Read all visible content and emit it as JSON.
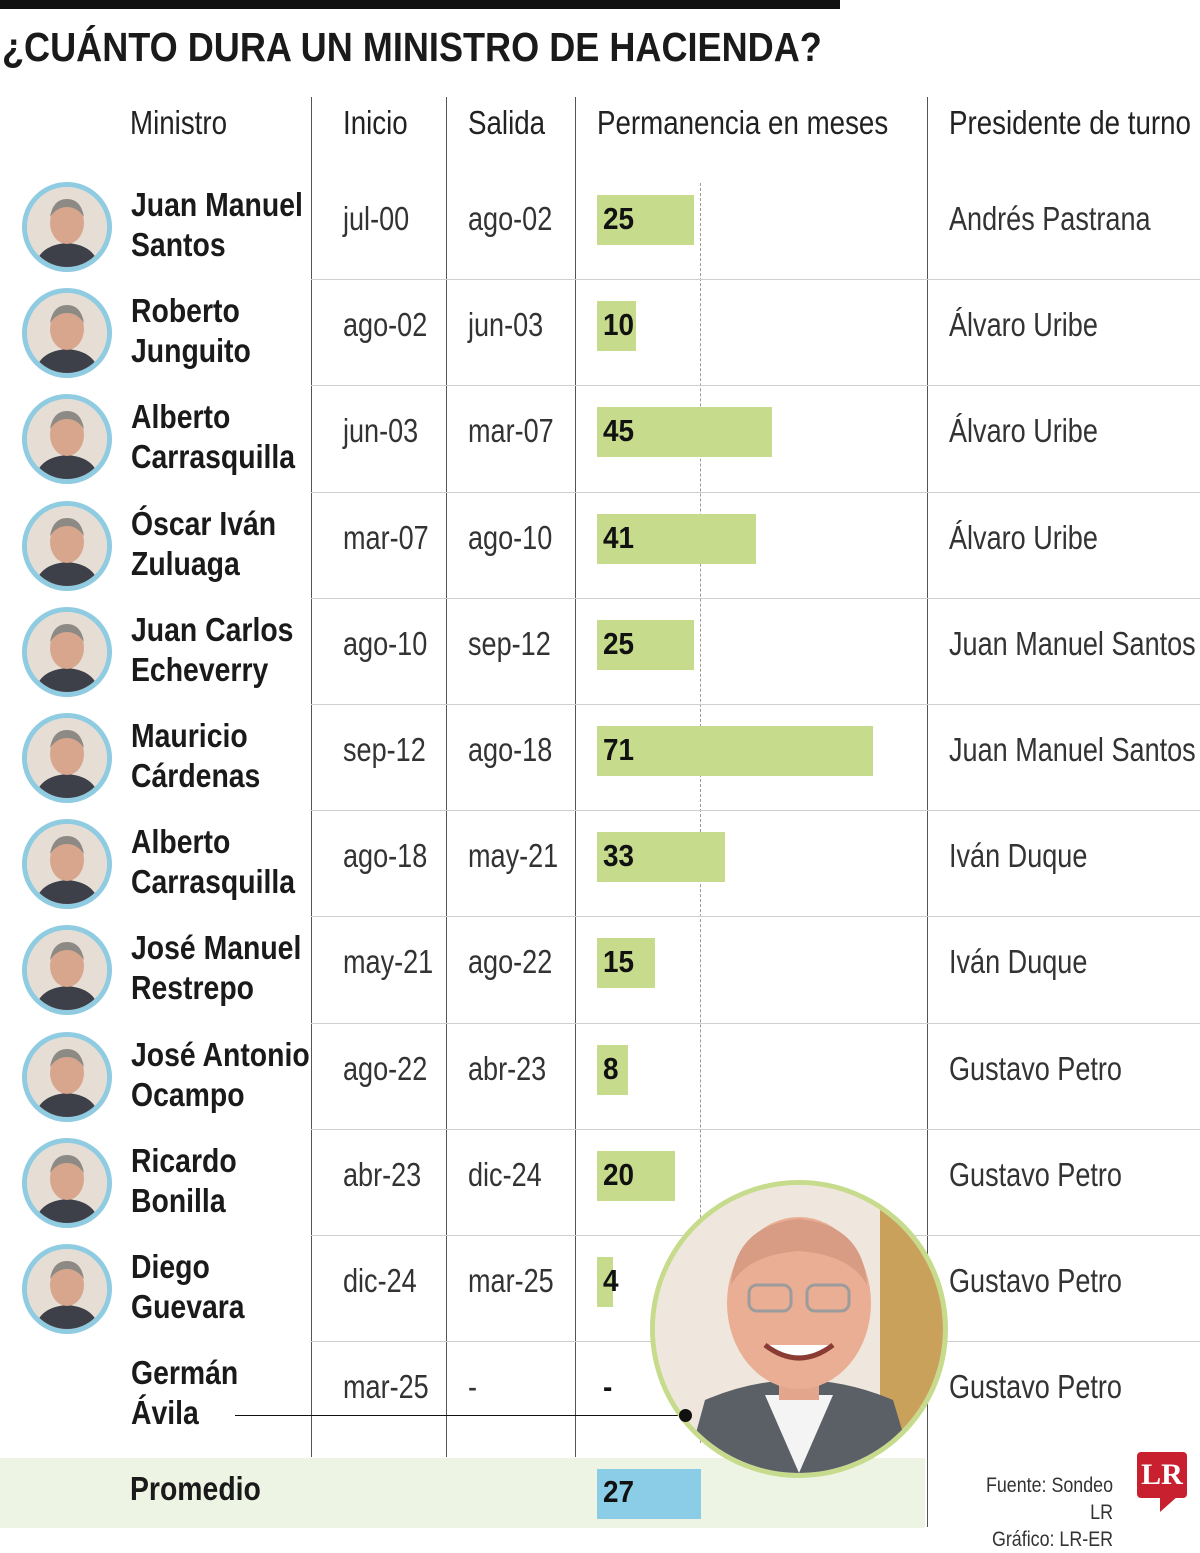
{
  "title": "¿CUÁNTO DURA UN MINISTRO DE HACIENDA?",
  "headers": {
    "ministro": "Ministro",
    "inicio": "Inicio",
    "salida": "Salida",
    "permanencia": "Permanencia en meses",
    "presidente": "Presidente de turno"
  },
  "rows": [
    {
      "name1": "Juan Manuel",
      "name2": "Santos",
      "inicio": "jul-00",
      "salida": "ago-02",
      "months": "25",
      "presidente": "Andrés Pastrana"
    },
    {
      "name1": "Roberto",
      "name2": "Junguito",
      "inicio": "ago-02",
      "salida": "jun-03",
      "months": "10",
      "presidente": "Álvaro Uribe"
    },
    {
      "name1": "Alberto",
      "name2": "Carrasquilla",
      "inicio": "jun-03",
      "salida": "mar-07",
      "months": "45",
      "presidente": "Álvaro Uribe"
    },
    {
      "name1": "Óscar Iván",
      "name2": "Zuluaga",
      "inicio": "mar-07",
      "salida": "ago-10",
      "months": "41",
      "presidente": "Álvaro Uribe"
    },
    {
      "name1": "Juan Carlos",
      "name2": "Echeverry",
      "inicio": "ago-10",
      "salida": "sep-12",
      "months": "25",
      "presidente": "Juan Manuel Santos"
    },
    {
      "name1": "Mauricio",
      "name2": "Cárdenas",
      "inicio": "sep-12",
      "salida": "ago-18",
      "months": "71",
      "presidente": "Juan Manuel Santos"
    },
    {
      "name1": "Alberto",
      "name2": "Carrasquilla",
      "inicio": "ago-18",
      "salida": "may-21",
      "months": "33",
      "presidente": "Iván Duque"
    },
    {
      "name1": "José Manuel",
      "name2": "Restrepo",
      "inicio": "may-21",
      "salida": "ago-22",
      "months": "15",
      "presidente": "Iván Duque"
    },
    {
      "name1": "José Antonio",
      "name2": "Ocampo",
      "inicio": "ago-22",
      "salida": "abr-23",
      "months": "8",
      "presidente": "Gustavo Petro"
    },
    {
      "name1": "Ricardo",
      "name2": "Bonilla",
      "inicio": "abr-23",
      "salida": "dic-24",
      "months": "20",
      "presidente": "Gustavo Petro"
    },
    {
      "name1": "Diego",
      "name2": "Guevara",
      "inicio": "dic-24",
      "salida": "mar-25",
      "months": "4",
      "presidente": "Gustavo Petro"
    },
    {
      "name1": "Germán",
      "name2": "Ávila",
      "inicio": "mar-25",
      "salida": "-",
      "months": "-",
      "presidente": "Gustavo Petro"
    }
  ],
  "average": {
    "label": "Promedio",
    "value": "27"
  },
  "source": {
    "line1": "Fuente: Sondeo LR",
    "line2": "Gráfico: LR-ER"
  },
  "logo": "LR",
  "colors": {
    "bar": "#c6dc8c",
    "average_bar": "#8bcde6",
    "avatar_ring": "#8fcbe1",
    "logo": "#c8202f"
  },
  "chart_data": {
    "type": "bar",
    "title": "¿CUÁNTO DURA UN MINISTRO DE HACIENDA?",
    "ylabel": "Permanencia en meses",
    "categories": [
      "Juan Manuel Santos",
      "Roberto Junguito",
      "Alberto Carrasquilla",
      "Óscar Iván Zuluaga",
      "Juan Carlos Echeverry",
      "Mauricio Cárdenas",
      "Alberto Carrasquilla",
      "José Manuel Restrepo",
      "José Antonio Ocampo",
      "Ricardo Bonilla",
      "Diego Guevara",
      "Germán Ávila"
    ],
    "values": [
      25,
      10,
      45,
      41,
      25,
      71,
      33,
      15,
      8,
      20,
      4,
      null
    ],
    "average": 27,
    "xlim": [
      0,
      71
    ]
  }
}
